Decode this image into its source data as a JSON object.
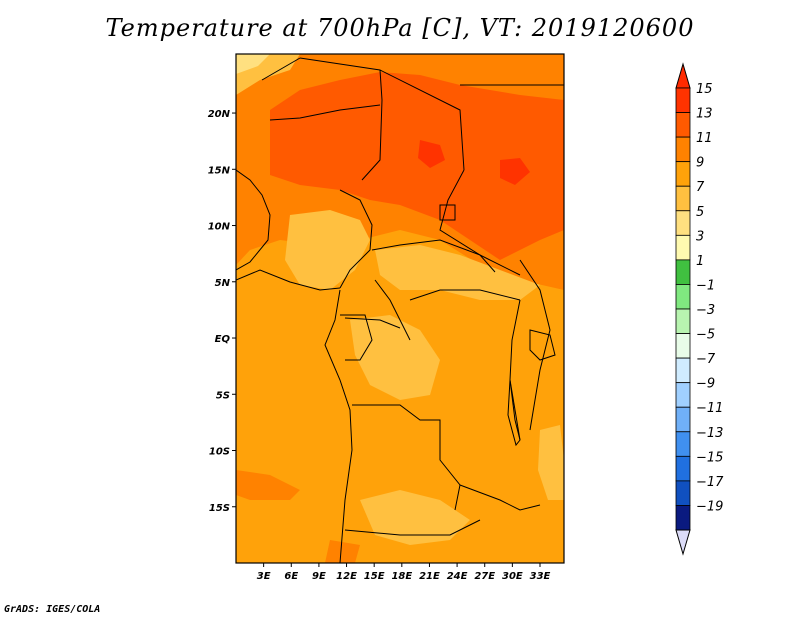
{
  "title": "Temperature at 700hPa [C], VT: 2019120600",
  "credit": "GrADS: IGES/COLA",
  "map": {
    "lat_labels": [
      "20N",
      "15N",
      "10N",
      "5N",
      "EQ",
      "5S",
      "10S",
      "15S"
    ],
    "lon_labels": [
      "3E",
      "6E",
      "9E",
      "12E",
      "15E",
      "18E",
      "21E",
      "24E",
      "27E",
      "30E",
      "33E"
    ],
    "lat_range": [
      -20,
      25
    ],
    "lon_range": [
      0,
      35
    ]
  },
  "colorbar": {
    "levels": [
      "15",
      "13",
      "11",
      "9",
      "7",
      "5",
      "3",
      "1",
      "−1",
      "−3",
      "−5",
      "−7",
      "−9",
      "−11",
      "−13",
      "−15",
      "−17",
      "−19"
    ],
    "colors": [
      "#ff3300",
      "#ff5a00",
      "#ff8200",
      "#ffa20a",
      "#ffc040",
      "#ffe080",
      "#fffab0",
      "#40c040",
      "#80e880",
      "#b8f4b0",
      "#e8fce8",
      "#d0ecff",
      "#a0d0ff",
      "#70b0f8",
      "#4090f0",
      "#2070e0",
      "#1050c0",
      "#0a1a80",
      "#0a0a50"
    ],
    "end_colors": {
      "top": "#ff2a00",
      "bottom": "#dcdcf8"
    }
  }
}
